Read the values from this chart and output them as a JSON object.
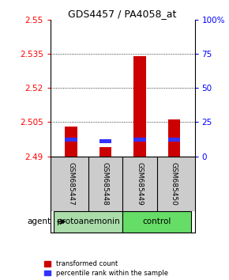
{
  "title": "GDS4457 / PA4058_at",
  "samples": [
    "GSM685447",
    "GSM685448",
    "GSM685449",
    "GSM685450"
  ],
  "groups": [
    "protoanemonin",
    "protoanemonin",
    "control",
    "control"
  ],
  "red_values": [
    2.503,
    2.494,
    2.534,
    2.506
  ],
  "blue_values": [
    2.4972,
    2.4965,
    2.4972,
    2.4972
  ],
  "ymin": 2.49,
  "ymax": 2.55,
  "yticks": [
    2.49,
    2.505,
    2.52,
    2.535,
    2.55
  ],
  "ytick_labels": [
    "2.49",
    "2.505",
    "2.52",
    "2.535",
    "2.55"
  ],
  "right_yticks_pct": [
    0,
    25,
    50,
    75,
    100
  ],
  "right_ytick_labels": [
    "0",
    "25",
    "50",
    "75",
    "100%"
  ],
  "bar_width": 0.35,
  "red_color": "#CC0000",
  "blue_color": "#3333FF",
  "grid_lines": [
    2.505,
    2.52,
    2.535
  ],
  "group_fill": {
    "protoanemonin": "#aaddaa",
    "control": "#66dd66"
  },
  "sample_bg": "#cccccc",
  "group_border": "#000000",
  "fig_width": 2.9,
  "fig_height": 3.54
}
